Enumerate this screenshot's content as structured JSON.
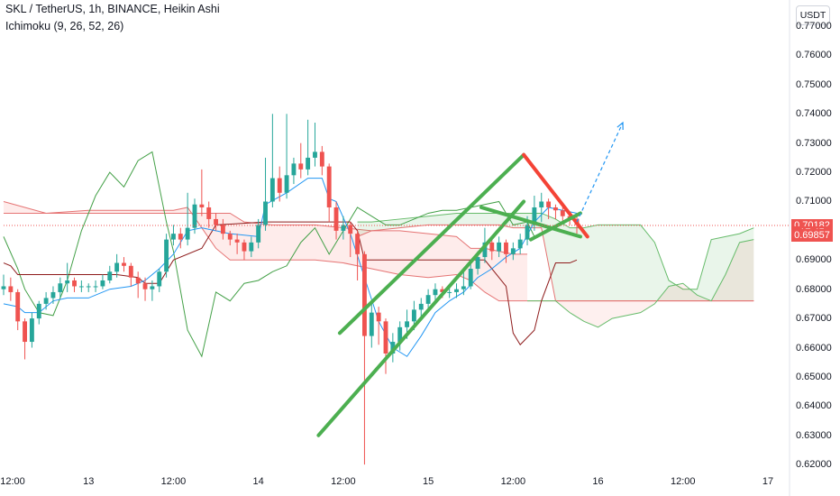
{
  "legend": {
    "symbol_line": "SKL / TetherUS, 1h, BINANCE, Heikin Ashi",
    "indicator_line": "Ichimoku (9, 26, 52, 26)"
  },
  "currency_badge": "USDT",
  "colors": {
    "up": "#26a69a",
    "down": "#ef5350",
    "conversion": "#2196f3",
    "base": "#8e1b1b",
    "lagging": "#43a047",
    "trend_up": "#4caf50",
    "trend_down": "#f44336",
    "projection": "#2196f3"
  },
  "chart_data": {
    "type": "candlestick",
    "title": "SKL / TetherUS, 1h, BINANCE, Heikin Ashi",
    "indicator": "Ichimoku (9, 26, 52, 26)",
    "ylim": [
      0.6185,
      0.7765
    ],
    "x_range": [
      0,
      108
    ],
    "y_ticks": [
      "0.77000",
      "0.76000",
      "0.75000",
      "0.74000",
      "0.73000",
      "0.72000",
      "0.71000",
      "0.70000",
      "0.69000",
      "0.68000",
      "0.67000",
      "0.66000",
      "0.65000",
      "0.64000",
      "0.63000",
      "0.62000"
    ],
    "x_ticks": [
      {
        "label": "12:00",
        "x": 0
      },
      {
        "label": "13",
        "x": 12
      },
      {
        "label": "12:00",
        "x": 24
      },
      {
        "label": "14",
        "x": 36
      },
      {
        "label": "12:00",
        "x": 48
      },
      {
        "label": "15",
        "x": 60
      },
      {
        "label": "12:00",
        "x": 72
      },
      {
        "label": "16",
        "x": 84
      },
      {
        "label": "12:00",
        "x": 96
      },
      {
        "label": "17",
        "x": 108
      }
    ],
    "price_labels": [
      {
        "text": "0.70182",
        "value": 0.70182,
        "color": "#ef5350"
      },
      {
        "text": "17:45",
        "value": 0.7001,
        "color": "#ef5350"
      },
      {
        "text": "0.69857",
        "value": 0.69857,
        "color": "#ef5350"
      }
    ],
    "current_price": 0.70182,
    "candles": [
      [
        0,
        0.68,
        0.681,
        0.685,
        0.678
      ],
      [
        1,
        0.681,
        0.679,
        0.684,
        0.676
      ],
      [
        2,
        0.679,
        0.669,
        0.68,
        0.666
      ],
      [
        3,
        0.669,
        0.662,
        0.67,
        0.656
      ],
      [
        4,
        0.662,
        0.67,
        0.672,
        0.66
      ],
      [
        5,
        0.67,
        0.675,
        0.676,
        0.668
      ],
      [
        6,
        0.675,
        0.677,
        0.679,
        0.673
      ],
      [
        7,
        0.677,
        0.679,
        0.681,
        0.675
      ],
      [
        8,
        0.679,
        0.682,
        0.684,
        0.677
      ],
      [
        9,
        0.682,
        0.683,
        0.689,
        0.679
      ],
      [
        10,
        0.683,
        0.681,
        0.684,
        0.679
      ],
      [
        11,
        0.681,
        0.681,
        0.683,
        0.679
      ],
      [
        12,
        0.681,
        0.681,
        0.682,
        0.679
      ],
      [
        13,
        0.681,
        0.681,
        0.683,
        0.679
      ],
      [
        14,
        0.681,
        0.683,
        0.685,
        0.68
      ],
      [
        15,
        0.683,
        0.686,
        0.688,
        0.682
      ],
      [
        16,
        0.686,
        0.689,
        0.692,
        0.684
      ],
      [
        17,
        0.689,
        0.688,
        0.691,
        0.686
      ],
      [
        18,
        0.688,
        0.684,
        0.689,
        0.681
      ],
      [
        19,
        0.684,
        0.682,
        0.686,
        0.677
      ],
      [
        20,
        0.682,
        0.68,
        0.684,
        0.676
      ],
      [
        21,
        0.68,
        0.681,
        0.683,
        0.676
      ],
      [
        22,
        0.681,
        0.686,
        0.687,
        0.679
      ],
      [
        23,
        0.686,
        0.697,
        0.699,
        0.684
      ],
      [
        24,
        0.697,
        0.699,
        0.702,
        0.695
      ],
      [
        25,
        0.699,
        0.697,
        0.701,
        0.694
      ],
      [
        26,
        0.697,
        0.701,
        0.713,
        0.695
      ],
      [
        27,
        0.701,
        0.709,
        0.711,
        0.699
      ],
      [
        28,
        0.709,
        0.708,
        0.721,
        0.705
      ],
      [
        29,
        0.708,
        0.704,
        0.71,
        0.701
      ],
      [
        30,
        0.704,
        0.702,
        0.706,
        0.7
      ],
      [
        31,
        0.702,
        0.699,
        0.704,
        0.697
      ],
      [
        32,
        0.699,
        0.697,
        0.7,
        0.695
      ],
      [
        33,
        0.697,
        0.696,
        0.699,
        0.692
      ],
      [
        34,
        0.696,
        0.693,
        0.697,
        0.69
      ],
      [
        35,
        0.693,
        0.696,
        0.698,
        0.691
      ],
      [
        36,
        0.696,
        0.702,
        0.704,
        0.694
      ],
      [
        37,
        0.702,
        0.71,
        0.725,
        0.7
      ],
      [
        38,
        0.71,
        0.718,
        0.74,
        0.708
      ],
      [
        39,
        0.718,
        0.713,
        0.722,
        0.71
      ],
      [
        40,
        0.713,
        0.719,
        0.74,
        0.711
      ],
      [
        41,
        0.719,
        0.723,
        0.725,
        0.716
      ],
      [
        42,
        0.723,
        0.721,
        0.73,
        0.718
      ],
      [
        43,
        0.721,
        0.725,
        0.738,
        0.719
      ],
      [
        44,
        0.725,
        0.727,
        0.737,
        0.722
      ],
      [
        45,
        0.727,
        0.722,
        0.729,
        0.719
      ],
      [
        46,
        0.722,
        0.708,
        0.723,
        0.703
      ],
      [
        47,
        0.708,
        0.7,
        0.71,
        0.697
      ],
      [
        48,
        0.7,
        0.702,
        0.705,
        0.697
      ],
      [
        49,
        0.702,
        0.699,
        0.703,
        0.691
      ],
      [
        50,
        0.699,
        0.692,
        0.7,
        0.683
      ],
      [
        51,
        0.692,
        0.664,
        0.693,
        0.62
      ],
      [
        52,
        0.664,
        0.672,
        0.675,
        0.66
      ],
      [
        53,
        0.672,
        0.669,
        0.674,
        0.661
      ],
      [
        54,
        0.669,
        0.658,
        0.67,
        0.651
      ],
      [
        55,
        0.658,
        0.662,
        0.665,
        0.655
      ],
      [
        56,
        0.662,
        0.667,
        0.669,
        0.659
      ],
      [
        57,
        0.667,
        0.669,
        0.673,
        0.663
      ],
      [
        58,
        0.669,
        0.673,
        0.676,
        0.666
      ],
      [
        59,
        0.673,
        0.675,
        0.677,
        0.67
      ],
      [
        60,
        0.675,
        0.678,
        0.68,
        0.673
      ],
      [
        61,
        0.678,
        0.68,
        0.682,
        0.676
      ],
      [
        62,
        0.68,
        0.679,
        0.681,
        0.677
      ],
      [
        63,
        0.679,
        0.679,
        0.681,
        0.677
      ],
      [
        64,
        0.679,
        0.68,
        0.682,
        0.677
      ],
      [
        65,
        0.68,
        0.681,
        0.686,
        0.678
      ],
      [
        66,
        0.681,
        0.687,
        0.69,
        0.68
      ],
      [
        67,
        0.687,
        0.691,
        0.693,
        0.685
      ],
      [
        68,
        0.691,
        0.696,
        0.701,
        0.689
      ],
      [
        69,
        0.696,
        0.693,
        0.697,
        0.69
      ],
      [
        70,
        0.693,
        0.696,
        0.698,
        0.691
      ],
      [
        71,
        0.696,
        0.692,
        0.697,
        0.689
      ],
      [
        72,
        0.692,
        0.694,
        0.696,
        0.69
      ],
      [
        73,
        0.694,
        0.697,
        0.699,
        0.692
      ],
      [
        74,
        0.697,
        0.702,
        0.705,
        0.695
      ],
      [
        75,
        0.702,
        0.708,
        0.712,
        0.7
      ],
      [
        76,
        0.708,
        0.71,
        0.713,
        0.703
      ],
      [
        77,
        0.71,
        0.708,
        0.711,
        0.704
      ],
      [
        78,
        0.708,
        0.707,
        0.709,
        0.704
      ],
      [
        79,
        0.707,
        0.705,
        0.708,
        0.703
      ],
      [
        80,
        0.705,
        0.704,
        0.706,
        0.702
      ],
      [
        81,
        0.704,
        0.702,
        0.705,
        0.699
      ]
    ],
    "ichimoku": {
      "conversion": [
        [
          0,
          0.675
        ],
        [
          2,
          0.674
        ],
        [
          3,
          0.672
        ],
        [
          5,
          0.672
        ],
        [
          7,
          0.676
        ],
        [
          9,
          0.677
        ],
        [
          12,
          0.677
        ],
        [
          15,
          0.68
        ],
        [
          18,
          0.681
        ],
        [
          20,
          0.683
        ],
        [
          22,
          0.687
        ],
        [
          24,
          0.692
        ],
        [
          26,
          0.7
        ],
        [
          28,
          0.701
        ],
        [
          30,
          0.7
        ],
        [
          32,
          0.699
        ],
        [
          36,
          0.698
        ],
        [
          37,
          0.709
        ],
        [
          40,
          0.713
        ],
        [
          43,
          0.718
        ],
        [
          45,
          0.718
        ],
        [
          46,
          0.711
        ],
        [
          47,
          0.71
        ],
        [
          49,
          0.699
        ],
        [
          51,
          0.684
        ],
        [
          53,
          0.669
        ],
        [
          55,
          0.66
        ],
        [
          57,
          0.657
        ],
        [
          59,
          0.664
        ],
        [
          61,
          0.672
        ],
        [
          63,
          0.676
        ],
        [
          65,
          0.679
        ],
        [
          67,
          0.684
        ],
        [
          69,
          0.687
        ],
        [
          71,
          0.691
        ],
        [
          73,
          0.694
        ],
        [
          75,
          0.703
        ],
        [
          77,
          0.708
        ],
        [
          79,
          0.707
        ],
        [
          81,
          0.706
        ]
      ],
      "base": [
        [
          0,
          0.689
        ],
        [
          1,
          0.688
        ],
        [
          2,
          0.685
        ],
        [
          8,
          0.685
        ],
        [
          12,
          0.685
        ],
        [
          16,
          0.685
        ],
        [
          19,
          0.684
        ],
        [
          20,
          0.682
        ],
        [
          22,
          0.682
        ],
        [
          24,
          0.69
        ],
        [
          28,
          0.694
        ],
        [
          30,
          0.702
        ],
        [
          37,
          0.703
        ],
        [
          45,
          0.703
        ],
        [
          46,
          0.703
        ],
        [
          49,
          0.703
        ],
        [
          50,
          0.7
        ],
        [
          51,
          0.69
        ],
        [
          60,
          0.69
        ],
        [
          68,
          0.69
        ],
        [
          71,
          0.681
        ],
        [
          72,
          0.665
        ],
        [
          73,
          0.661
        ],
        [
          75,
          0.666
        ],
        [
          76,
          0.676
        ],
        [
          78,
          0.689
        ],
        [
          80,
          0.689
        ],
        [
          81,
          0.69
        ]
      ],
      "lagging": [
        [
          0,
          0.698
        ],
        [
          2,
          0.687
        ],
        [
          3,
          0.68
        ],
        [
          5,
          0.672
        ],
        [
          7,
          0.671
        ],
        [
          9,
          0.683
        ],
        [
          11,
          0.7
        ],
        [
          13,
          0.712
        ],
        [
          15,
          0.72
        ],
        [
          17,
          0.715
        ],
        [
          19,
          0.724
        ],
        [
          21,
          0.727
        ],
        [
          23,
          0.703
        ],
        [
          24,
          0.693
        ],
        [
          26,
          0.666
        ],
        [
          28,
          0.657
        ],
        [
          30,
          0.679
        ],
        [
          32,
          0.676
        ],
        [
          34,
          0.682
        ],
        [
          36,
          0.683
        ],
        [
          38,
          0.686
        ],
        [
          40,
          0.688
        ],
        [
          42,
          0.696
        ],
        [
          44,
          0.701
        ],
        [
          46,
          0.692
        ],
        [
          48,
          0.7
        ],
        [
          50,
          0.708
        ],
        [
          52,
          0.705
        ],
        [
          54,
          0.702
        ],
        [
          56,
          0.702
        ],
        [
          58,
          0.704
        ],
        [
          60,
          0.706
        ],
        [
          62,
          0.707
        ],
        [
          64,
          0.707
        ],
        [
          66,
          0.708
        ],
        [
          68,
          0.709
        ],
        [
          70,
          0.71
        ],
        [
          72,
          0.702
        ],
        [
          74,
          0.703
        ],
        [
          75,
          0.698
        ]
      ],
      "cloud_red": {
        "x": [
          0,
          6,
          12,
          18,
          24,
          26,
          30,
          32,
          34,
          38,
          44,
          48,
          52,
          56,
          60,
          64,
          66,
          68,
          70,
          72,
          74
        ],
        "a": [
          0.71,
          0.706,
          0.707,
          0.707,
          0.707,
          0.708,
          0.694,
          0.69,
          0.69,
          0.69,
          0.69,
          0.689,
          0.687,
          0.685,
          0.684,
          0.685,
          0.683,
          0.679,
          0.676,
          0.676,
          0.676
        ],
        "b": [
          0.706,
          0.706,
          0.706,
          0.706,
          0.706,
          0.706,
          0.706,
          0.706,
          0.703,
          0.702,
          0.702,
          0.701,
          0.7,
          0.7,
          0.699,
          0.698,
          0.694,
          0.694,
          0.693,
          0.692,
          0.692
        ]
      },
      "cloud_green": {
        "x": [
          50,
          52,
          56,
          60,
          64,
          68,
          70,
          72,
          74,
          76,
          78,
          80,
          82,
          84,
          86,
          88,
          90,
          92,
          94,
          96,
          98,
          100,
          102,
          104,
          106
        ],
        "a": [
          0.703,
          0.703,
          0.704,
          0.705,
          0.706,
          0.706,
          0.706,
          0.706,
          0.706,
          0.706,
          0.704,
          0.701,
          0.701,
          0.702,
          0.702,
          0.702,
          0.702,
          0.696,
          0.683,
          0.68,
          0.68,
          0.697,
          0.698,
          0.699,
          0.701
        ],
        "b": [
          0.698,
          0.7,
          0.701,
          0.702,
          0.702,
          0.702,
          0.702,
          0.701,
          0.701,
          0.701,
          0.676,
          0.676,
          0.676,
          0.676,
          0.676,
          0.676,
          0.676,
          0.676,
          0.676,
          0.676,
          0.676,
          0.676,
          0.676,
          0.676,
          0.676
        ]
      },
      "cloud_pink_right": {
        "x": [
          74,
          76,
          78,
          80,
          82,
          84,
          86,
          88,
          90,
          92,
          94,
          96,
          98,
          100,
          102,
          104,
          106
        ],
        "a": [
          0.676,
          0.676,
          0.676,
          0.676,
          0.676,
          0.676,
          0.676,
          0.676,
          0.676,
          0.676,
          0.676,
          0.676,
          0.676,
          0.676,
          0.676,
          0.676,
          0.676
        ],
        "b": [
          0.676,
          0.676,
          0.676,
          0.672,
          0.669,
          0.667,
          0.67,
          0.671,
          0.672,
          0.675,
          0.681,
          0.682,
          0.678,
          0.676,
          0.685,
          0.696,
          0.697
        ]
      }
    },
    "drawings": [
      {
        "kind": "trendline",
        "color": "#4caf50",
        "points": [
          [
            44.5,
            0.63
          ],
          [
            73.5,
            0.71
          ]
        ]
      },
      {
        "kind": "trendline",
        "color": "#4caf50",
        "points": [
          [
            47.5,
            0.665
          ],
          [
            73.5,
            0.726
          ]
        ]
      },
      {
        "kind": "trendline",
        "color": "#4caf50",
        "points": [
          [
            67.5,
            0.708
          ],
          [
            81.5,
            0.698
          ]
        ]
      },
      {
        "kind": "trendline",
        "color": "#f44336",
        "points": [
          [
            73.5,
            0.726
          ],
          [
            82.5,
            0.698
          ]
        ]
      },
      {
        "kind": "trendline",
        "color": "#4caf50",
        "points": [
          [
            74.5,
            0.697
          ],
          [
            81.5,
            0.706
          ]
        ]
      },
      {
        "kind": "projection",
        "color": "#2196f3",
        "points": [
          [
            81,
            0.703
          ],
          [
            87.5,
            0.737
          ]
        ]
      }
    ]
  }
}
